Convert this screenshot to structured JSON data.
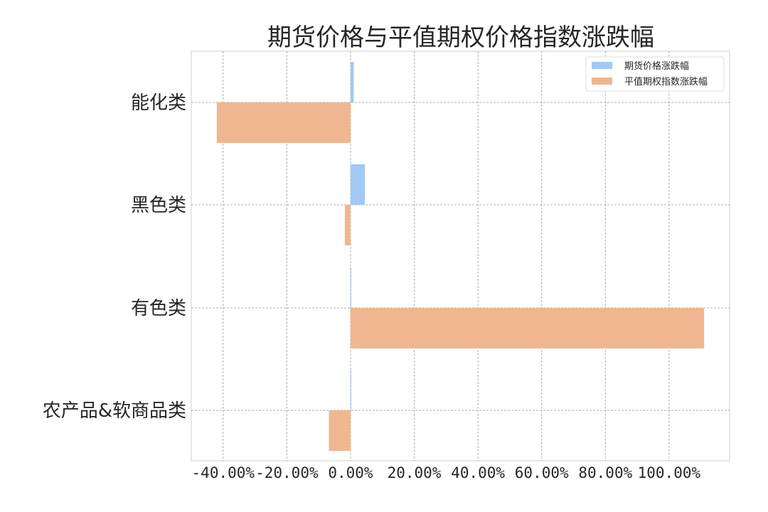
{
  "chart_data": {
    "type": "bar",
    "orientation": "horizontal",
    "title": "期货价格与平值期权价格指数涨跌幅",
    "xlabel": "",
    "ylabel": "",
    "categories": [
      "能化类",
      "黑色类",
      "有色类",
      "农产品&软商品类"
    ],
    "series": [
      {
        "name": "期货价格涨跌幅",
        "values": [
          0.01,
          0.045,
          0.0,
          0.0
        ],
        "color": "#a1c9f4"
      },
      {
        "name": "平值期权指数涨跌幅",
        "values": [
          -0.42,
          -0.018,
          1.11,
          -0.068
        ],
        "color": "#f0b68f"
      }
    ],
    "xlim": [
      -0.5,
      1.19
    ],
    "xticks": [
      -0.4,
      -0.2,
      0.0,
      0.2,
      0.4,
      0.6,
      0.8,
      1.0
    ],
    "xtick_labels": [
      "-40.00%",
      "-20.00%",
      "0.00%",
      "20.00%",
      "40.00%",
      "60.00%",
      "80.00%",
      "100.00%"
    ],
    "grid": true,
    "legend_position": "top-right"
  }
}
